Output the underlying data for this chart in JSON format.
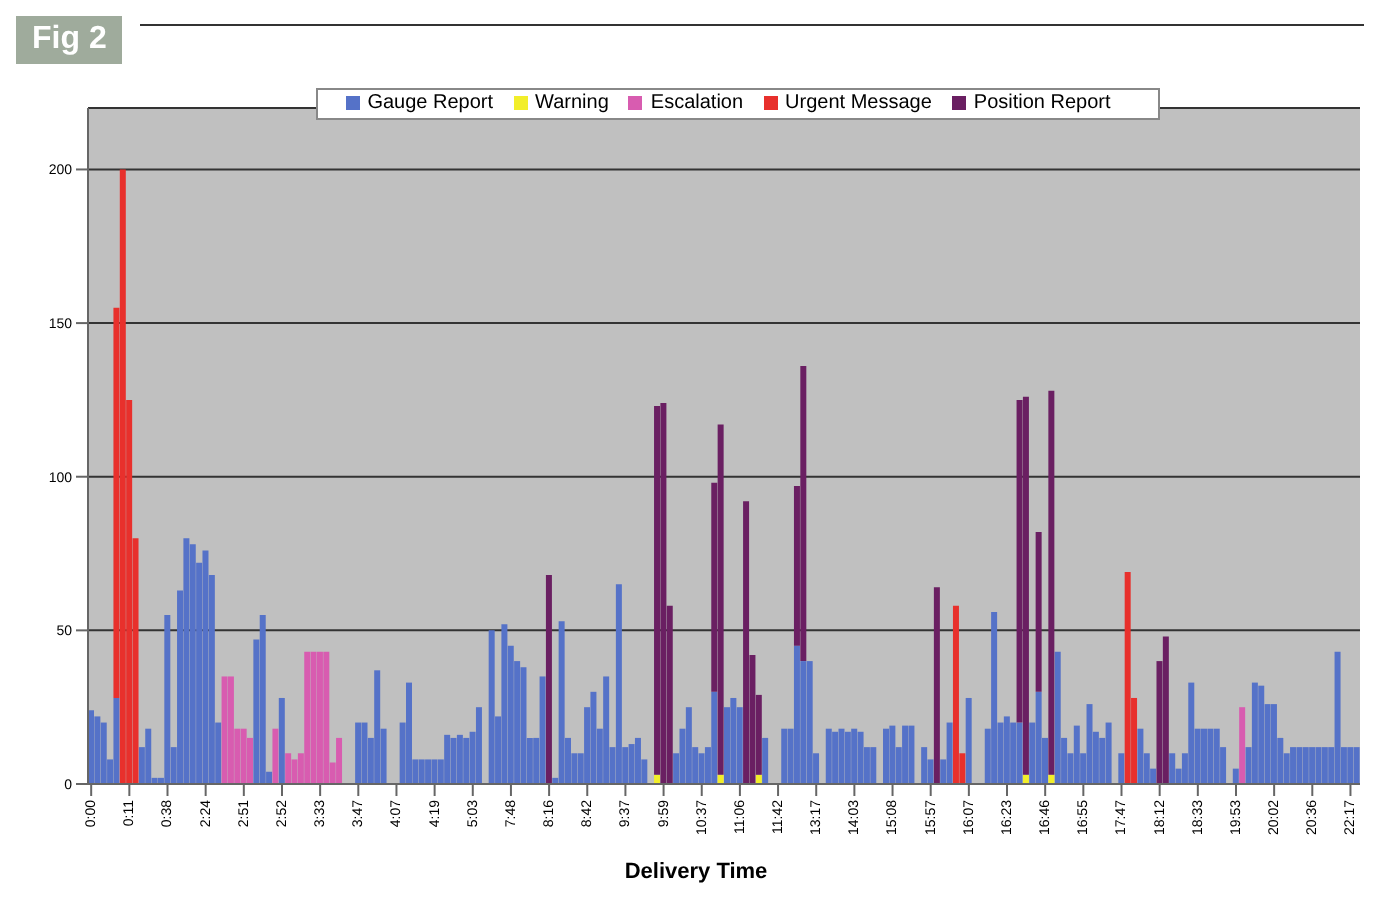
{
  "chart_data": {
    "type": "bar",
    "title": "Fig 2",
    "xlabel": "Delivery Time",
    "stacked": true,
    "grid": "y",
    "legend": "top",
    "ylim": [
      0,
      220
    ],
    "yticks": [
      0,
      50,
      100,
      150,
      200
    ],
    "categories": [
      "0:00",
      null,
      null,
      null,
      null,
      null,
      "0:11",
      null,
      null,
      null,
      null,
      null,
      "0:38",
      null,
      null,
      null,
      null,
      null,
      "2:24",
      null,
      null,
      null,
      null,
      null,
      "2:51",
      null,
      null,
      null,
      null,
      null,
      "2:52",
      null,
      null,
      null,
      null,
      null,
      "3:33",
      null,
      null,
      null,
      null,
      null,
      "3:47",
      null,
      null,
      null,
      null,
      null,
      "4:07",
      null,
      null,
      null,
      null,
      null,
      "4:19",
      null,
      null,
      null,
      null,
      null,
      "5:03",
      null,
      null,
      null,
      null,
      null,
      "7:48",
      null,
      null,
      null,
      null,
      null,
      "8:16",
      null,
      null,
      null,
      null,
      null,
      "8:42",
      null,
      null,
      null,
      null,
      null,
      "9:37",
      null,
      null,
      null,
      null,
      null,
      "9:59",
      null,
      null,
      null,
      null,
      null,
      "10:37",
      null,
      null,
      null,
      null,
      null,
      "11:06",
      null,
      null,
      null,
      null,
      null,
      "11:42",
      null,
      null,
      null,
      null,
      null,
      "13:17",
      null,
      null,
      null,
      null,
      null,
      "14:03",
      null,
      null,
      null,
      null,
      null,
      "15:08",
      null,
      null,
      null,
      null,
      null,
      "15:57",
      null,
      null,
      null,
      null,
      null,
      "16:07",
      null,
      null,
      null,
      null,
      null,
      "16:23",
      null,
      null,
      null,
      null,
      null,
      "16:46",
      null,
      null,
      null,
      null,
      null,
      "16:55",
      null,
      null,
      null,
      null,
      null,
      "17:47",
      null,
      null,
      null,
      null,
      null,
      "18:12",
      null,
      null,
      null,
      null,
      null,
      "18:33",
      null,
      null,
      null,
      null,
      null,
      "19:53",
      null,
      null,
      null,
      null,
      null,
      "20:02",
      null,
      null,
      null,
      null,
      null,
      "20:36",
      null,
      null,
      null,
      null,
      null,
      "22:17",
      null
    ],
    "series": [
      {
        "name": "Gauge Report",
        "color": "#5572c8",
        "values": [
          24,
          22,
          20,
          8,
          28,
          0,
          0,
          0,
          12,
          18,
          2,
          2,
          55,
          12,
          63,
          80,
          78,
          72,
          76,
          68,
          20,
          0,
          0,
          0,
          0,
          0,
          47,
          55,
          4,
          0,
          28,
          0,
          0,
          0,
          0,
          0,
          0,
          0,
          0,
          0,
          0,
          0,
          20,
          20,
          15,
          37,
          18,
          0,
          0,
          20,
          33,
          8,
          8,
          8,
          8,
          8,
          16,
          15,
          16,
          15,
          17,
          25,
          0,
          50,
          22,
          52,
          45,
          40,
          38,
          15,
          15,
          35,
          0,
          2,
          53,
          15,
          10,
          10,
          25,
          30,
          18,
          35,
          12,
          65,
          12,
          13,
          15,
          8,
          0,
          0,
          0,
          0,
          10,
          18,
          25,
          12,
          10,
          12,
          30,
          0,
          25,
          28,
          25,
          0,
          0,
          0,
          15,
          0,
          0,
          18,
          18,
          45,
          40,
          40,
          10,
          0,
          18,
          17,
          18,
          17,
          18,
          17,
          12,
          12,
          0,
          18,
          19,
          12,
          19,
          19,
          0,
          12,
          8,
          0,
          8,
          20,
          0,
          0,
          28,
          0,
          0,
          18,
          56,
          20,
          22,
          20,
          20,
          0,
          20,
          30,
          15,
          0,
          43,
          15,
          10,
          19,
          10,
          26,
          17,
          15,
          20,
          0,
          10,
          0,
          0,
          18,
          10,
          5,
          0,
          0,
          10,
          5,
          10,
          33,
          18,
          18,
          18,
          18,
          12,
          0,
          5,
          0,
          12,
          33,
          32,
          26,
          26,
          15,
          10,
          12,
          12,
          12,
          12,
          12,
          12,
          12,
          43,
          12,
          12,
          12
        ]
      },
      {
        "name": "Warning",
        "color": "#f2ee2a",
        "values": [
          0,
          0,
          0,
          0,
          0,
          0,
          0,
          0,
          0,
          0,
          0,
          0,
          0,
          0,
          0,
          0,
          0,
          0,
          0,
          0,
          0,
          0,
          0,
          0,
          0,
          0,
          0,
          0,
          0,
          0,
          0,
          0,
          0,
          0,
          0,
          0,
          0,
          0,
          0,
          0,
          0,
          0,
          0,
          0,
          0,
          0,
          0,
          0,
          0,
          0,
          0,
          0,
          0,
          0,
          0,
          0,
          0,
          0,
          0,
          0,
          0,
          0,
          0,
          0,
          0,
          0,
          0,
          0,
          0,
          0,
          0,
          0,
          0,
          0,
          0,
          0,
          0,
          0,
          0,
          0,
          0,
          0,
          0,
          0,
          0,
          0,
          0,
          0,
          0,
          3,
          0,
          0,
          0,
          0,
          0,
          0,
          0,
          0,
          0,
          3,
          0,
          0,
          0,
          0,
          0,
          3,
          0,
          0,
          0,
          0,
          0,
          0,
          0,
          0,
          0,
          0,
          0,
          0,
          0,
          0,
          0,
          0,
          0,
          0,
          0,
          0,
          0,
          0,
          0,
          0,
          0,
          0,
          0,
          0,
          0,
          0,
          0,
          0,
          0,
          0,
          0,
          0,
          0,
          0,
          0,
          0,
          0,
          3,
          0,
          0,
          0,
          3,
          0,
          0,
          0,
          0,
          0,
          0,
          0,
          0,
          0,
          0,
          0,
          0,
          0,
          0,
          0,
          0,
          0,
          0,
          0,
          0,
          0,
          0,
          0,
          0,
          0,
          0,
          0,
          0,
          0,
          0,
          0,
          0,
          0,
          0,
          0,
          0,
          0,
          0,
          0,
          0,
          0,
          0,
          0,
          0,
          0,
          0,
          0,
          0
        ]
      },
      {
        "name": "Escalation",
        "color": "#d85cb0",
        "values": [
          0,
          0,
          0,
          0,
          0,
          0,
          0,
          0,
          0,
          0,
          0,
          0,
          0,
          0,
          0,
          0,
          0,
          0,
          0,
          0,
          0,
          35,
          35,
          18,
          18,
          15,
          0,
          0,
          0,
          18,
          0,
          10,
          8,
          10,
          43,
          43,
          43,
          43,
          7,
          15,
          0,
          0,
          0,
          0,
          0,
          0,
          0,
          0,
          0,
          0,
          0,
          0,
          0,
          0,
          0,
          0,
          0,
          0,
          0,
          0,
          0,
          0,
          0,
          0,
          0,
          0,
          0,
          0,
          0,
          0,
          0,
          0,
          0,
          0,
          0,
          0,
          0,
          0,
          0,
          0,
          0,
          0,
          0,
          0,
          0,
          0,
          0,
          0,
          0,
          0,
          0,
          0,
          0,
          0,
          0,
          0,
          0,
          0,
          0,
          0,
          0,
          0,
          0,
          0,
          0,
          0,
          0,
          0,
          0,
          0,
          0,
          0,
          0,
          0,
          0,
          0,
          0,
          0,
          0,
          0,
          0,
          0,
          0,
          0,
          0,
          0,
          0,
          0,
          0,
          0,
          0,
          0,
          0,
          0,
          0,
          0,
          0,
          0,
          0,
          0,
          0,
          0,
          0,
          0,
          0,
          0,
          0,
          0,
          0,
          0,
          0,
          0,
          0,
          0,
          0,
          0,
          0,
          0,
          0,
          0,
          0,
          0,
          0,
          0,
          0,
          0,
          0,
          0,
          0,
          0,
          0,
          0,
          0,
          0,
          0,
          0,
          0,
          0,
          0,
          0,
          0,
          25,
          0,
          0,
          0,
          0,
          0,
          0,
          0,
          0,
          0,
          0,
          0,
          0,
          0,
          0,
          0,
          0,
          0,
          0
        ]
      },
      {
        "name": "Urgent Message",
        "color": "#e8302c",
        "values": [
          0,
          0,
          0,
          0,
          127,
          200,
          125,
          80,
          0,
          0,
          0,
          0,
          0,
          0,
          0,
          0,
          0,
          0,
          0,
          0,
          0,
          0,
          0,
          0,
          0,
          0,
          0,
          0,
          0,
          0,
          0,
          0,
          0,
          0,
          0,
          0,
          0,
          0,
          0,
          0,
          0,
          0,
          0,
          0,
          0,
          0,
          0,
          0,
          0,
          0,
          0,
          0,
          0,
          0,
          0,
          0,
          0,
          0,
          0,
          0,
          0,
          0,
          0,
          0,
          0,
          0,
          0,
          0,
          0,
          0,
          0,
          0,
          0,
          0,
          0,
          0,
          0,
          0,
          0,
          0,
          0,
          0,
          0,
          0,
          0,
          0,
          0,
          0,
          0,
          0,
          0,
          0,
          0,
          0,
          0,
          0,
          0,
          0,
          0,
          0,
          0,
          0,
          0,
          0,
          0,
          0,
          0,
          0,
          0,
          0,
          0,
          0,
          0,
          0,
          0,
          0,
          0,
          0,
          0,
          0,
          0,
          0,
          0,
          0,
          0,
          0,
          0,
          0,
          0,
          0,
          0,
          0,
          0,
          0,
          0,
          0,
          58,
          10,
          0,
          0,
          0,
          0,
          0,
          0,
          0,
          0,
          0,
          0,
          0,
          0,
          0,
          0,
          0,
          0,
          0,
          0,
          0,
          0,
          0,
          0,
          0,
          0,
          0,
          69,
          28,
          0,
          0,
          0,
          0,
          0,
          0,
          0,
          0,
          0,
          0,
          0,
          0,
          0,
          0,
          0,
          0,
          0,
          0,
          0,
          0,
          0,
          0,
          0,
          0,
          0,
          0,
          0,
          0,
          0,
          0,
          0,
          0,
          0,
          0,
          0
        ]
      },
      {
        "name": "Position Report",
        "color": "#6a1f62",
        "values": [
          0,
          0,
          0,
          0,
          0,
          0,
          0,
          0,
          0,
          0,
          0,
          0,
          0,
          0,
          0,
          0,
          0,
          0,
          0,
          0,
          0,
          0,
          0,
          0,
          0,
          0,
          0,
          0,
          0,
          0,
          0,
          0,
          0,
          0,
          0,
          0,
          0,
          0,
          0,
          0,
          0,
          0,
          0,
          0,
          0,
          0,
          0,
          0,
          0,
          0,
          0,
          0,
          0,
          0,
          0,
          0,
          0,
          0,
          0,
          0,
          0,
          0,
          0,
          0,
          0,
          0,
          0,
          0,
          0,
          0,
          0,
          0,
          68,
          0,
          0,
          0,
          0,
          0,
          0,
          0,
          0,
          0,
          0,
          0,
          0,
          0,
          0,
          0,
          0,
          120,
          124,
          58,
          0,
          0,
          0,
          0,
          0,
          0,
          68,
          114,
          0,
          0,
          0,
          92,
          42,
          26,
          0,
          0,
          0,
          0,
          0,
          52,
          96,
          0,
          0,
          0,
          0,
          0,
          0,
          0,
          0,
          0,
          0,
          0,
          0,
          0,
          0,
          0,
          0,
          0,
          0,
          0,
          0,
          64,
          0,
          0,
          0,
          0,
          0,
          0,
          0,
          0,
          0,
          0,
          0,
          0,
          105,
          123,
          0,
          52,
          0,
          125,
          0,
          0,
          0,
          0,
          0,
          0,
          0,
          0,
          0,
          0,
          0,
          0,
          0,
          0,
          0,
          0,
          40,
          48,
          0,
          0,
          0,
          0,
          0,
          0,
          0,
          0,
          0,
          0,
          0,
          0,
          0,
          0,
          0,
          0,
          0,
          0,
          0,
          0,
          0,
          0,
          0,
          0,
          0,
          0,
          0,
          0,
          0,
          0
        ]
      }
    ]
  }
}
